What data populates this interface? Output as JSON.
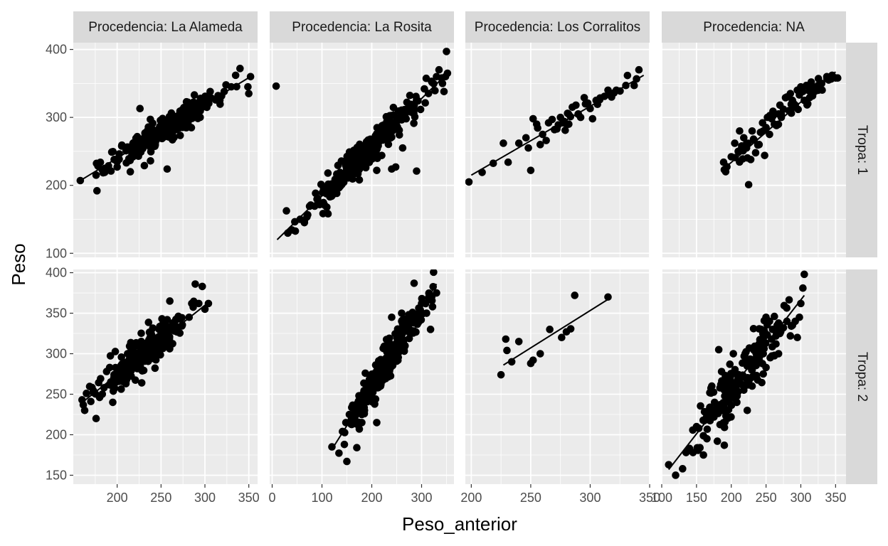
{
  "chart_data": {
    "type": "scatter",
    "xlabel": "Peso_anterior",
    "ylabel": "Peso",
    "column_strips": [
      "Procedencia: La Alameda",
      "Procedencia: La Rosita",
      "Procedencia: Los Corralitos",
      "Procedencia: NA"
    ],
    "row_strips": [
      "Tropa: 1",
      "Tropa: 2"
    ],
    "grid": true,
    "trend_line": "linear",
    "x_axes": [
      {
        "xlim": [
          150,
          360
        ],
        "ticks": [
          200,
          250,
          300,
          350
        ],
        "tick_labels": [
          "200",
          "250",
          "300",
          "350"
        ]
      },
      {
        "xlim": [
          -5,
          365
        ],
        "ticks": [
          0,
          100,
          200,
          300
        ],
        "tick_labels": [
          "0",
          "100",
          "200",
          "300"
        ]
      },
      {
        "xlim": [
          195,
          350
        ],
        "ticks": [
          200,
          250,
          300,
          350
        ],
        "tick_labels": [
          "200",
          "250",
          "300",
          "350"
        ]
      },
      {
        "xlim": [
          100,
          365
        ],
        "ticks": [
          100,
          150,
          200,
          250,
          300,
          350
        ],
        "tick_labels": [
          "100",
          "150",
          "200",
          "250",
          "300",
          "350"
        ]
      }
    ],
    "y_axes": [
      {
        "ylim": [
          94,
          410
        ],
        "ticks": [
          100,
          200,
          300,
          400
        ],
        "tick_labels": [
          "100",
          "200",
          "300",
          "400"
        ]
      },
      {
        "ylim": [
          139,
          404
        ],
        "ticks": [
          150,
          200,
          250,
          300,
          350,
          400
        ],
        "tick_labels": [
          "150",
          "200",
          "250",
          "300",
          "350",
          "400"
        ]
      }
    ],
    "panels": [
      {
        "row": 0,
        "col": 0,
        "strip": "Procedencia: La Alameda / Tropa: 1",
        "n_points": 300,
        "fit": {
          "x0": 158,
          "x1": 352,
          "y0": 207,
          "y1": 360
        },
        "scatter_sd": 9,
        "points": [
          [
            158,
            207
          ],
          [
            177,
            192
          ],
          [
            176,
            215
          ],
          [
            186,
            225
          ],
          [
            193,
            221
          ],
          [
            200,
            227
          ],
          [
            215,
            220
          ],
          [
            226,
            313
          ],
          [
            231,
            229
          ],
          [
            238,
            236
          ],
          [
            257,
            224
          ],
          [
            288,
            333
          ],
          [
            295,
            328
          ],
          [
            306,
            338
          ],
          [
            315,
            332
          ],
          [
            322,
            338
          ],
          [
            330,
            345
          ],
          [
            335,
            362
          ],
          [
            340,
            372
          ],
          [
            350,
            335
          ],
          [
            352,
            360
          ],
          [
            349,
            345
          ]
        ]
      },
      {
        "row": 0,
        "col": 1,
        "strip": "Procedencia: La Rosita / Tropa: 1",
        "n_points": 350,
        "fit": {
          "x0": 10,
          "x1": 352,
          "y0": 120,
          "y1": 365
        },
        "scatter_sd": 11,
        "points": [
          [
            8,
            346
          ],
          [
            175,
            208
          ],
          [
            188,
            226
          ],
          [
            210,
            222
          ],
          [
            220,
            244
          ],
          [
            240,
            224
          ],
          [
            248,
            227
          ],
          [
            262,
            255
          ],
          [
            290,
            221
          ],
          [
            330,
            360
          ],
          [
            335,
            370
          ],
          [
            340,
            358
          ],
          [
            342,
            350
          ],
          [
            345,
            338
          ],
          [
            350,
            397
          ],
          [
            352,
            365
          ],
          [
            348,
            360
          ],
          [
            320,
            353
          ]
        ]
      },
      {
        "row": 0,
        "col": 2,
        "strip": "Procedencia: Los Corralitos / Tropa: 1",
        "n_points": 55,
        "fit": {
          "x0": 200,
          "x1": 345,
          "y0": 215,
          "y1": 362
        },
        "scatter_sd": 8,
        "points": [
          [
            198,
            205
          ],
          [
            227,
            262
          ],
          [
            231,
            234
          ],
          [
            240,
            262
          ],
          [
            246,
            270
          ],
          [
            248,
            255
          ],
          [
            250,
            222
          ],
          [
            252,
            298
          ],
          [
            255,
            290
          ],
          [
            258,
            260
          ],
          [
            260,
            275
          ],
          [
            265,
            292
          ],
          [
            268,
            297
          ],
          [
            272,
            283
          ],
          [
            275,
            300
          ],
          [
            277,
            292
          ],
          [
            279,
            281
          ],
          [
            281,
            306
          ],
          [
            285,
            315
          ],
          [
            288,
            318
          ],
          [
            290,
            305
          ],
          [
            292,
            300
          ],
          [
            295,
            329
          ],
          [
            298,
            321
          ],
          [
            300,
            313
          ],
          [
            302,
            298
          ],
          [
            305,
            325
          ],
          [
            308,
            326
          ],
          [
            312,
            331
          ],
          [
            315,
            340
          ],
          [
            318,
            330
          ],
          [
            320,
            336
          ],
          [
            322,
            340
          ],
          [
            330,
            347
          ],
          [
            341,
            370
          ],
          [
            337,
            347
          ],
          [
            263,
            266
          ],
          [
            270,
            282
          ],
          [
            282,
            290
          ]
        ]
      },
      {
        "row": 0,
        "col": 3,
        "strip": "Procedencia: NA / Tropa: 1",
        "n_points": 85,
        "fit": {
          "x0": 189,
          "x1": 350,
          "y0": 224,
          "y1": 367
        },
        "scatter_sd": 9,
        "points": [
          [
            189,
            234
          ],
          [
            190,
            223
          ],
          [
            200,
            242
          ],
          [
            205,
            262
          ],
          [
            210,
            250
          ],
          [
            212,
            280
          ],
          [
            215,
            258
          ],
          [
            218,
            270
          ],
          [
            222,
            255
          ],
          [
            225,
            201
          ],
          [
            228,
            238
          ],
          [
            230,
            280
          ],
          [
            232,
            268
          ],
          [
            235,
            248
          ],
          [
            240,
            260
          ],
          [
            242,
            278
          ],
          [
            245,
            292
          ],
          [
            248,
            244
          ],
          [
            250,
            285
          ],
          [
            252,
            300
          ],
          [
            255,
            275
          ],
          [
            258,
            298
          ],
          [
            260,
            309
          ],
          [
            262,
            290
          ],
          [
            265,
            288
          ],
          [
            268,
            305
          ],
          [
            270,
            318
          ],
          [
            272,
            300
          ],
          [
            275,
            312
          ],
          [
            278,
            329
          ],
          [
            280,
            330
          ],
          [
            283,
            310
          ],
          [
            285,
            335
          ],
          [
            288,
            325
          ],
          [
            290,
            320
          ],
          [
            292,
            318
          ],
          [
            295,
            340
          ],
          [
            298,
            333
          ],
          [
            300,
            345
          ],
          [
            303,
            338
          ],
          [
            305,
            325
          ],
          [
            308,
            347
          ],
          [
            310,
            320
          ],
          [
            312,
            339
          ],
          [
            315,
            352
          ],
          [
            318,
            345
          ],
          [
            320,
            338
          ],
          [
            325,
            340
          ],
          [
            330,
            350
          ],
          [
            340,
            355
          ],
          [
            350,
            358
          ],
          [
            353,
            358
          ],
          [
            345,
            362
          ]
        ]
      },
      {
        "row": 1,
        "col": 0,
        "strip": "Procedencia: La Alameda / Tropa: 2",
        "n_points": 300,
        "fit": {
          "x0": 158,
          "x1": 305,
          "y0": 238,
          "y1": 364
        },
        "scatter_sd": 10,
        "points": [
          [
            160,
            243
          ],
          [
            163,
            230
          ],
          [
            165,
            251
          ],
          [
            170,
            241
          ],
          [
            176,
            220
          ],
          [
            180,
            246
          ],
          [
            185,
            258
          ],
          [
            188,
            278
          ],
          [
            195,
            240
          ],
          [
            198,
            272
          ],
          [
            205,
            272
          ],
          [
            210,
            263
          ],
          [
            228,
            264
          ],
          [
            260,
            365
          ],
          [
            282,
            345
          ],
          [
            285,
            362
          ],
          [
            289,
            386
          ],
          [
            293,
            362
          ],
          [
            297,
            383
          ],
          [
            300,
            355
          ],
          [
            304,
            362
          ]
        ]
      },
      {
        "row": 1,
        "col": 1,
        "strip": "Procedencia: La Rosita / Tropa: 2",
        "n_points": 330,
        "fit": {
          "x0": 120,
          "x1": 330,
          "y0": 182,
          "y1": 386
        },
        "scatter_sd": 10,
        "points": [
          [
            120,
            185
          ],
          [
            145,
            188
          ],
          [
            150,
            167
          ],
          [
            170,
            184
          ],
          [
            148,
            215
          ],
          [
            155,
            225
          ],
          [
            160,
            220
          ],
          [
            165,
            226
          ],
          [
            175,
            207
          ],
          [
            180,
            215
          ],
          [
            185,
            226
          ],
          [
            195,
            250
          ],
          [
            198,
            265
          ],
          [
            210,
            215
          ],
          [
            240,
            345
          ],
          [
            260,
            350
          ],
          [
            285,
            387
          ],
          [
            300,
            362
          ],
          [
            310,
            350
          ],
          [
            318,
            330
          ],
          [
            322,
            358
          ],
          [
            330,
            375
          ]
        ]
      },
      {
        "row": 1,
        "col": 2,
        "strip": "Procedencia: Los Corralitos / Tropa: 2",
        "n_points": 14,
        "fit": {
          "x0": 227,
          "x1": 316,
          "y0": 286,
          "y1": 368
        },
        "scatter_sd": 10,
        "points": [
          [
            225,
            274
          ],
          [
            229,
            318
          ],
          [
            230,
            304
          ],
          [
            234,
            290
          ],
          [
            240,
            315
          ],
          [
            250,
            288
          ],
          [
            252,
            292
          ],
          [
            258,
            300
          ],
          [
            266,
            330
          ],
          [
            276,
            320
          ],
          [
            280,
            327
          ],
          [
            287,
            372
          ],
          [
            315,
            370
          ]
        ]
      },
      {
        "row": 1,
        "col": 3,
        "strip": "Procedencia: NA / Tropa: 2",
        "n_points": 200,
        "fit": {
          "x0": 110,
          "x1": 305,
          "y0": 157,
          "y1": 372
        },
        "scatter_sd": 15,
        "points": [
          [
            110,
            163
          ],
          [
            120,
            150
          ],
          [
            130,
            158
          ],
          [
            135,
            178
          ],
          [
            140,
            183
          ],
          [
            145,
            178
          ],
          [
            150,
            210
          ],
          [
            155,
            184
          ],
          [
            160,
            175
          ],
          [
            165,
            195
          ],
          [
            168,
            230
          ],
          [
            172,
            260
          ],
          [
            176,
            240
          ],
          [
            180,
            192
          ],
          [
            182,
            305
          ],
          [
            185,
            262
          ],
          [
            188,
            263
          ],
          [
            190,
            187
          ],
          [
            195,
            245
          ],
          [
            198,
            287
          ],
          [
            203,
            300
          ],
          [
            208,
            240
          ],
          [
            210,
            270
          ],
          [
            215,
            262
          ],
          [
            220,
            300
          ],
          [
            223,
            230
          ],
          [
            226,
            307
          ],
          [
            230,
            280
          ],
          [
            233,
            304
          ],
          [
            236,
            290
          ],
          [
            240,
            312
          ],
          [
            243,
            330
          ],
          [
            246,
            300
          ],
          [
            250,
            345
          ],
          [
            255,
            340
          ],
          [
            258,
            318
          ],
          [
            262,
            346
          ],
          [
            266,
            335
          ],
          [
            270,
            325
          ],
          [
            275,
            332
          ],
          [
            280,
            340
          ],
          [
            285,
            322
          ],
          [
            288,
            335
          ],
          [
            292,
            340
          ],
          [
            295,
            320
          ],
          [
            300,
            362
          ],
          [
            303,
            381
          ],
          [
            305,
            398
          ],
          [
            298,
            345
          ],
          [
            268,
            300
          ],
          [
            262,
            298
          ],
          [
            256,
            295
          ],
          [
            250,
            283
          ],
          [
            246,
            275
          ],
          [
            230,
            260
          ],
          [
            218,
            255
          ]
        ]
      }
    ]
  }
}
